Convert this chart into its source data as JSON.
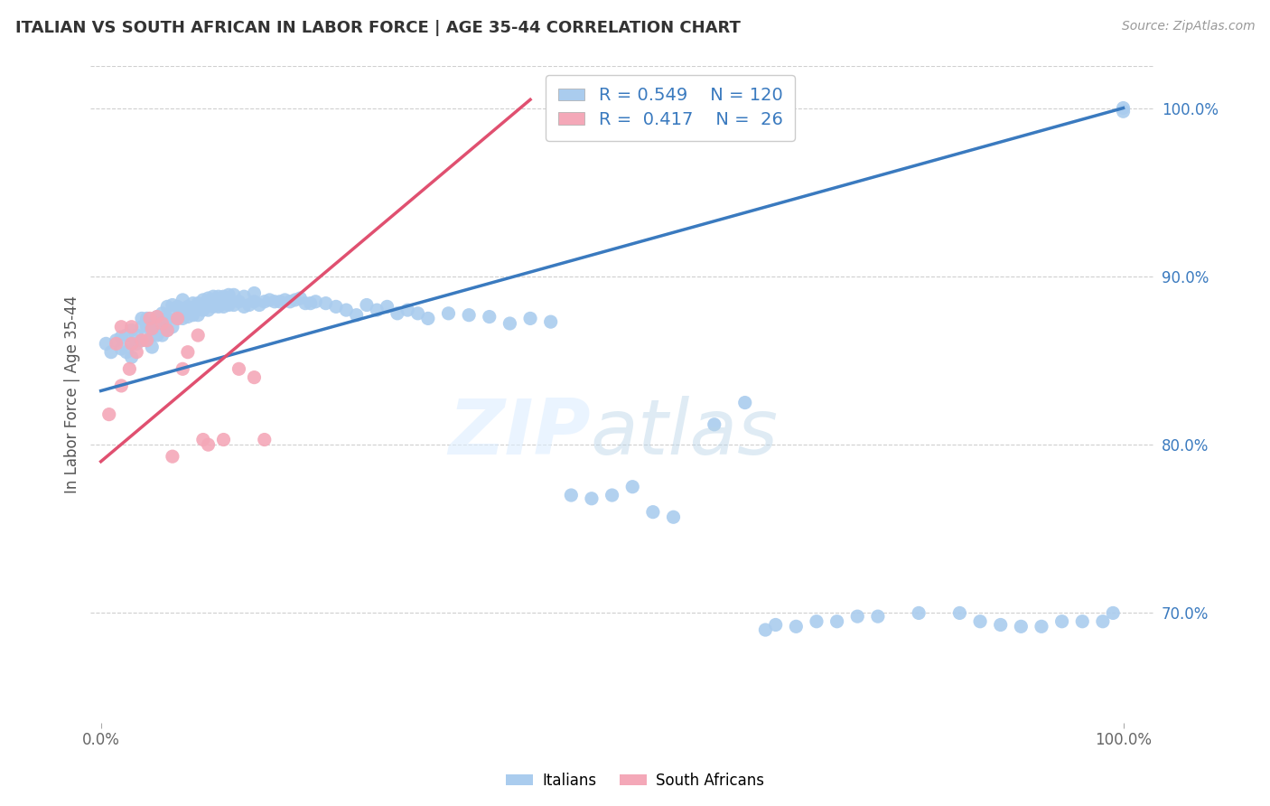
{
  "title": "ITALIAN VS SOUTH AFRICAN IN LABOR FORCE | AGE 35-44 CORRELATION CHART",
  "source_text": "Source: ZipAtlas.com",
  "ylabel": "In Labor Force | Age 35-44",
  "xlim": [
    -0.01,
    1.03
  ],
  "ylim": [
    0.635,
    1.025
  ],
  "x_ticks": [
    0.0,
    1.0
  ],
  "x_tick_labels": [
    "0.0%",
    "100.0%"
  ],
  "y_tick_labels_right": [
    "70.0%",
    "80.0%",
    "90.0%",
    "100.0%"
  ],
  "y_ticks_right": [
    0.7,
    0.8,
    0.9,
    1.0
  ],
  "blue_color": "#aaccee",
  "pink_color": "#f4a8b8",
  "blue_line_color": "#3a7abf",
  "pink_line_color": "#e05070",
  "legend_r_blue": "0.549",
  "legend_n_blue": "120",
  "legend_r_pink": "0.417",
  "legend_n_pink": "26",
  "legend_label_blue": "Italians",
  "legend_label_pink": "South Africans",
  "blue_line_x": [
    0.0,
    1.0
  ],
  "blue_line_y": [
    0.832,
    1.0
  ],
  "pink_line_x": [
    0.0,
    0.42
  ],
  "pink_line_y": [
    0.79,
    1.005
  ],
  "blue_scatter_x": [
    0.005,
    0.01,
    0.015,
    0.02,
    0.02,
    0.025,
    0.025,
    0.03,
    0.03,
    0.03,
    0.035,
    0.035,
    0.04,
    0.04,
    0.04,
    0.045,
    0.045,
    0.045,
    0.05,
    0.05,
    0.05,
    0.055,
    0.055,
    0.055,
    0.06,
    0.06,
    0.06,
    0.065,
    0.065,
    0.065,
    0.07,
    0.07,
    0.07,
    0.075,
    0.075,
    0.08,
    0.08,
    0.08,
    0.085,
    0.085,
    0.09,
    0.09,
    0.095,
    0.095,
    0.1,
    0.1,
    0.105,
    0.105,
    0.11,
    0.11,
    0.115,
    0.115,
    0.12,
    0.12,
    0.125,
    0.125,
    0.13,
    0.13,
    0.135,
    0.14,
    0.14,
    0.145,
    0.15,
    0.15,
    0.155,
    0.16,
    0.165,
    0.17,
    0.175,
    0.18,
    0.185,
    0.19,
    0.195,
    0.2,
    0.205,
    0.21,
    0.22,
    0.23,
    0.24,
    0.25,
    0.26,
    0.27,
    0.28,
    0.29,
    0.3,
    0.31,
    0.32,
    0.34,
    0.36,
    0.38,
    0.4,
    0.42,
    0.44,
    0.46,
    0.48,
    0.5,
    0.52,
    0.54,
    0.56,
    0.6,
    0.63,
    0.65,
    0.66,
    0.68,
    0.7,
    0.72,
    0.74,
    0.76,
    0.8,
    0.84,
    0.86,
    0.88,
    0.9,
    0.92,
    0.94,
    0.96,
    0.98,
    0.99,
    1.0,
    1.0
  ],
  "blue_scatter_y": [
    0.86,
    0.855,
    0.862,
    0.857,
    0.864,
    0.855,
    0.865,
    0.852,
    0.86,
    0.868,
    0.86,
    0.865,
    0.862,
    0.87,
    0.875,
    0.862,
    0.87,
    0.875,
    0.858,
    0.865,
    0.872,
    0.865,
    0.87,
    0.876,
    0.865,
    0.872,
    0.878,
    0.868,
    0.875,
    0.882,
    0.87,
    0.877,
    0.883,
    0.875,
    0.882,
    0.875,
    0.88,
    0.886,
    0.876,
    0.882,
    0.877,
    0.884,
    0.877,
    0.884,
    0.88,
    0.886,
    0.88,
    0.887,
    0.882,
    0.888,
    0.882,
    0.888,
    0.882,
    0.888,
    0.883,
    0.889,
    0.883,
    0.889,
    0.885,
    0.882,
    0.888,
    0.883,
    0.885,
    0.89,
    0.883,
    0.885,
    0.886,
    0.885,
    0.885,
    0.886,
    0.885,
    0.886,
    0.887,
    0.884,
    0.884,
    0.885,
    0.884,
    0.882,
    0.88,
    0.877,
    0.883,
    0.88,
    0.882,
    0.878,
    0.88,
    0.878,
    0.875,
    0.878,
    0.877,
    0.876,
    0.872,
    0.875,
    0.873,
    0.77,
    0.768,
    0.77,
    0.775,
    0.76,
    0.757,
    0.812,
    0.825,
    0.69,
    0.693,
    0.692,
    0.695,
    0.695,
    0.698,
    0.698,
    0.7,
    0.7,
    0.695,
    0.693,
    0.692,
    0.692,
    0.695,
    0.695,
    0.695,
    0.7,
    1.0,
    0.998
  ],
  "pink_scatter_x": [
    0.008,
    0.015,
    0.02,
    0.02,
    0.028,
    0.03,
    0.03,
    0.035,
    0.04,
    0.045,
    0.048,
    0.05,
    0.055,
    0.06,
    0.065,
    0.07,
    0.075,
    0.08,
    0.085,
    0.095,
    0.1,
    0.105,
    0.12,
    0.135,
    0.15,
    0.16
  ],
  "pink_scatter_y": [
    0.818,
    0.86,
    0.835,
    0.87,
    0.845,
    0.86,
    0.87,
    0.855,
    0.862,
    0.862,
    0.875,
    0.869,
    0.876,
    0.872,
    0.868,
    0.793,
    0.875,
    0.845,
    0.855,
    0.865,
    0.803,
    0.8,
    0.803,
    0.845,
    0.84,
    0.803
  ]
}
